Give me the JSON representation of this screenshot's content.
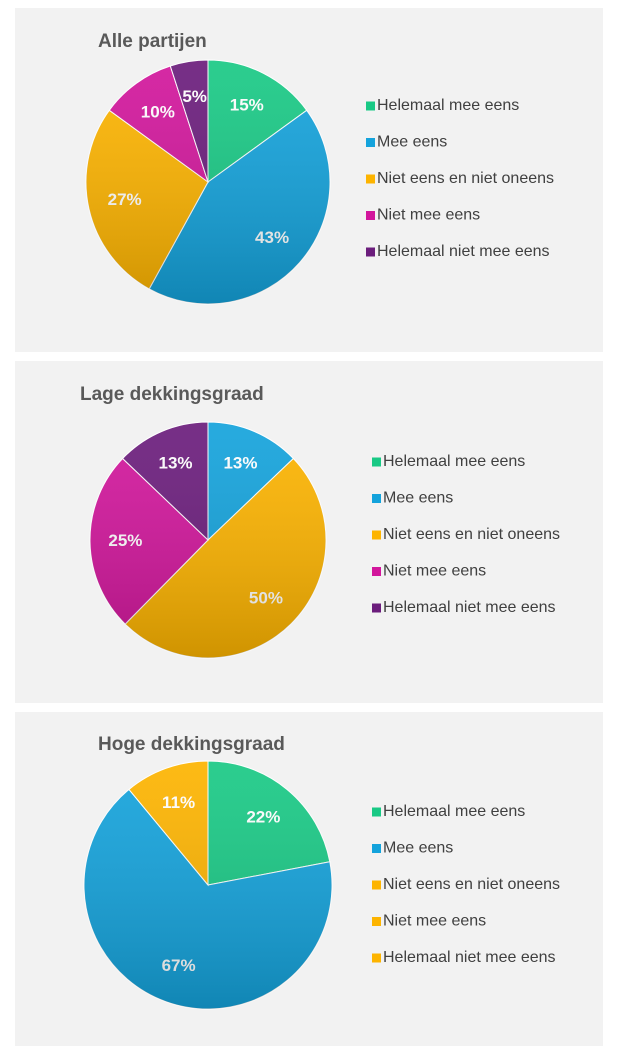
{
  "chart_data": [
    {
      "type": "pie",
      "title": "Alle partijen",
      "categories": [
        "Helemaal mee eens",
        "Mee eens",
        "Niet eens en niet oneens",
        "Niet mee eens",
        "Helemaal niet mee eens"
      ],
      "values": [
        15,
        43,
        27,
        10,
        5
      ],
      "value_labels": [
        "15%",
        "43%",
        "27%",
        "10%",
        "5%"
      ],
      "colors": [
        "#19c985",
        "#14a3dc",
        "#fdb400",
        "#d2169c",
        "#6b1d7c"
      ]
    },
    {
      "type": "pie",
      "title": "Lage dekkingsgraad",
      "categories": [
        "Helemaal mee eens",
        "Mee eens",
        "Niet eens en niet oneens",
        "Niet mee eens",
        "Helemaal niet mee eens"
      ],
      "values": [
        0,
        13,
        50,
        25,
        13
      ],
      "value_labels": [
        null,
        "13%",
        "50%",
        "25%",
        "13%"
      ],
      "colors": [
        "#19c985",
        "#14a3dc",
        "#fdb400",
        "#d2169c",
        "#6b1d7c"
      ]
    },
    {
      "type": "pie",
      "title": "Hoge dekkingsgraad",
      "categories": [
        "Helemaal mee eens",
        "Mee eens",
        "Niet eens en niet oneens",
        "Niet mee eens",
        "Helemaal niet mee eens"
      ],
      "values": [
        22,
        67,
        11,
        0,
        0
      ],
      "value_labels": [
        "22%",
        "67%",
        "11%",
        null,
        null
      ],
      "colors": [
        "#19c985",
        "#14a3dc",
        "#fdb400",
        "#fdb400",
        "#fdb400"
      ]
    }
  ]
}
